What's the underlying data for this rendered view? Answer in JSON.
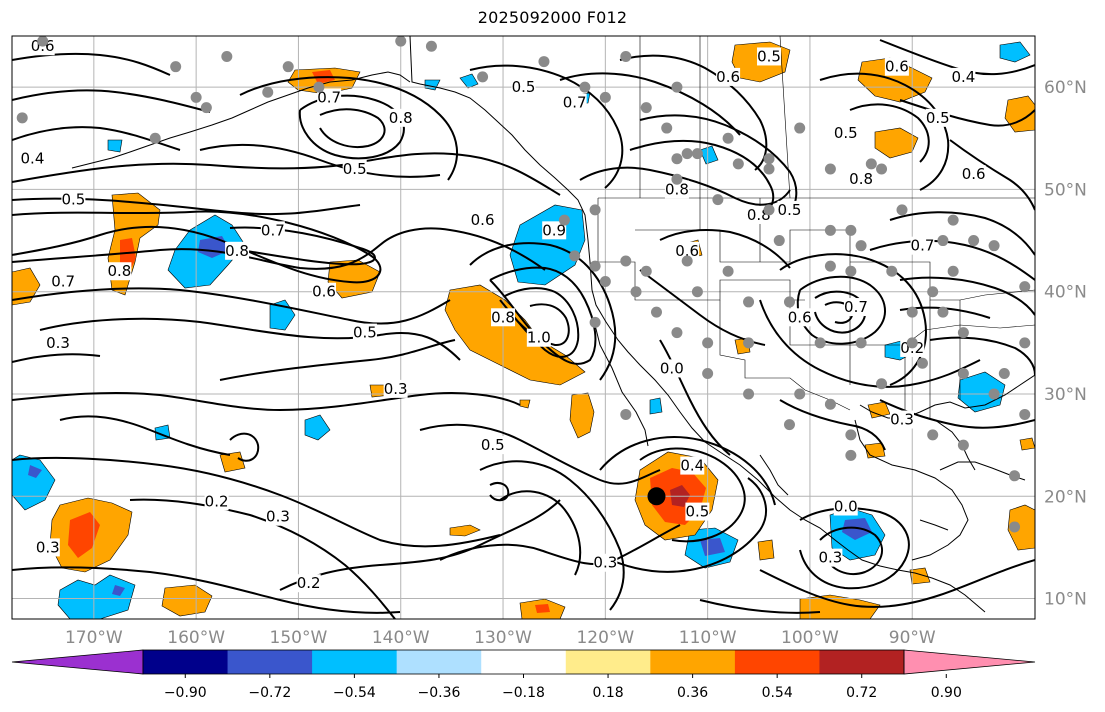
{
  "title": "2025092000 F012",
  "map": {
    "projection": "PlateCarree",
    "lon_range": [
      -178,
      -78
    ],
    "lat_range": [
      8,
      65
    ],
    "lon_ticks": [
      {
        "value": -170,
        "label": "170°W"
      },
      {
        "value": -160,
        "label": "160°W"
      },
      {
        "value": -150,
        "label": "150°W"
      },
      {
        "value": -140,
        "label": "140°W"
      },
      {
        "value": -130,
        "label": "130°W"
      },
      {
        "value": -120,
        "label": "120°W"
      },
      {
        "value": -110,
        "label": "110°W"
      },
      {
        "value": -100,
        "label": "100°W"
      },
      {
        "value": -90,
        "label": "90°W"
      }
    ],
    "lat_ticks": [
      {
        "value": 60,
        "label": "60°N"
      },
      {
        "value": 50,
        "label": "50°N"
      },
      {
        "value": 40,
        "label": "40°N"
      },
      {
        "value": 30,
        "label": "30°N"
      },
      {
        "value": 20,
        "label": "20°N"
      },
      {
        "value": 10,
        "label": "10°N"
      }
    ],
    "grid_color": "#b4b4b4",
    "tick_label_color": "#8a8a8a"
  },
  "colorbar": {
    "labels": [
      "−0.90",
      "−0.72",
      "−0.54",
      "−0.36",
      "−0.18",
      "0.18",
      "0.36",
      "0.54",
      "0.72",
      "0.90"
    ],
    "colors": [
      "#9b30d0",
      "#00008b",
      "#3a56cc",
      "#00bfff",
      "#aee0ff",
      "#ffffff",
      "#ffec8b",
      "#ffa500",
      "#ff4500",
      "#b22222",
      "#ff8fb0"
    ]
  },
  "contour_labels": [
    {
      "text": "0.6",
      "lon": -175,
      "lat": 64
    },
    {
      "text": "0.4",
      "lon": -176,
      "lat": 53
    },
    {
      "text": "0.5",
      "lon": -172,
      "lat": 49
    },
    {
      "text": "0.7",
      "lon": -173,
      "lat": 41
    },
    {
      "text": "0.8",
      "lon": -167.5,
      "lat": 42
    },
    {
      "text": "0.3",
      "lon": -173.5,
      "lat": 35
    },
    {
      "text": "0.8",
      "lon": -156,
      "lat": 44
    },
    {
      "text": "0.7",
      "lon": -152.5,
      "lat": 46
    },
    {
      "text": "0.6",
      "lon": -147.5,
      "lat": 40
    },
    {
      "text": "0.5",
      "lon": -143.5,
      "lat": 36
    },
    {
      "text": "0.3",
      "lon": -140.5,
      "lat": 30.5
    },
    {
      "text": "0.7",
      "lon": -147,
      "lat": 59
    },
    {
      "text": "0.8",
      "lon": -140,
      "lat": 57
    },
    {
      "text": "0.5",
      "lon": -144.5,
      "lat": 52
    },
    {
      "text": "0.6",
      "lon": -132,
      "lat": 47
    },
    {
      "text": "0.5",
      "lon": -128,
      "lat": 60
    },
    {
      "text": "0.7",
      "lon": -123,
      "lat": 58.5
    },
    {
      "text": "0.6",
      "lon": -108,
      "lat": 61
    },
    {
      "text": "0.5",
      "lon": -104,
      "lat": 63
    },
    {
      "text": "0.8",
      "lon": -113,
      "lat": 50
    },
    {
      "text": "0.8",
      "lon": -105,
      "lat": 47.5
    },
    {
      "text": "0.6",
      "lon": -112,
      "lat": 44
    },
    {
      "text": "0.5",
      "lon": -102,
      "lat": 48
    },
    {
      "text": "0.5",
      "lon": -96.5,
      "lat": 55.5
    },
    {
      "text": "0.8",
      "lon": -95,
      "lat": 51
    },
    {
      "text": "0.6",
      "lon": -91.5,
      "lat": 62
    },
    {
      "text": "0.4",
      "lon": -85,
      "lat": 61
    },
    {
      "text": "0.5",
      "lon": -87.5,
      "lat": 57
    },
    {
      "text": "0.6",
      "lon": -84,
      "lat": 51.5
    },
    {
      "text": "0.7",
      "lon": -89,
      "lat": 44.5
    },
    {
      "text": "0.9",
      "lon": -125,
      "lat": 46
    },
    {
      "text": "0.8",
      "lon": -130,
      "lat": 37.5
    },
    {
      "text": "1.0",
      "lon": -126.5,
      "lat": 35.5
    },
    {
      "text": "0.0",
      "lon": -113.5,
      "lat": 32.5
    },
    {
      "text": "0.6",
      "lon": -101,
      "lat": 37.5
    },
    {
      "text": "0.7",
      "lon": -95.5,
      "lat": 38.5
    },
    {
      "text": "0.2",
      "lon": -90,
      "lat": 34.5
    },
    {
      "text": "0.3",
      "lon": -91,
      "lat": 27.5
    },
    {
      "text": "0.5",
      "lon": -131,
      "lat": 25
    },
    {
      "text": "0.4",
      "lon": -111.5,
      "lat": 23
    },
    {
      "text": "0.5",
      "lon": -111,
      "lat": 18.5
    },
    {
      "text": "0.3",
      "lon": -120,
      "lat": 13.5
    },
    {
      "text": "0.0",
      "lon": -96.5,
      "lat": 19
    },
    {
      "text": "0.3",
      "lon": -98,
      "lat": 14
    },
    {
      "text": "0.2",
      "lon": -158,
      "lat": 19.5
    },
    {
      "text": "0.3",
      "lon": -152,
      "lat": 18
    },
    {
      "text": "0.2",
      "lon": -149,
      "lat": 11.5
    },
    {
      "text": "0.3",
      "lon": -174.5,
      "lat": 15
    }
  ],
  "points": [
    [
      -177,
      57
    ],
    [
      -175,
      64.5
    ],
    [
      -162,
      62
    ],
    [
      -160,
      59
    ],
    [
      -164,
      55
    ],
    [
      -159,
      58
    ],
    [
      -157,
      63
    ],
    [
      -151,
      62
    ],
    [
      -153,
      59.5
    ],
    [
      -148,
      60
    ],
    [
      -140,
      64.5
    ],
    [
      -137,
      64
    ],
    [
      -132,
      61
    ],
    [
      -126,
      62.5
    ],
    [
      -122,
      60
    ],
    [
      -120,
      59
    ],
    [
      -118,
      63
    ],
    [
      -113,
      60
    ],
    [
      -116,
      58
    ],
    [
      -114,
      56
    ],
    [
      -112,
      53.5
    ],
    [
      -111,
      53.5
    ],
    [
      -113,
      51
    ],
    [
      -113,
      53
    ],
    [
      -108,
      55
    ],
    [
      -104,
      53
    ],
    [
      -101,
      56
    ],
    [
      -107,
      52.5
    ],
    [
      -104,
      52
    ],
    [
      -109,
      49
    ],
    [
      -104,
      48
    ],
    [
      -98,
      52
    ],
    [
      -93,
      52
    ],
    [
      -96,
      46
    ],
    [
      -94,
      52.5
    ],
    [
      -91,
      48
    ],
    [
      -87,
      45
    ],
    [
      -84,
      45
    ],
    [
      -86,
      47
    ],
    [
      -124,
      47
    ],
    [
      -121,
      48
    ],
    [
      -123,
      43.5
    ],
    [
      -121,
      42.5
    ],
    [
      -118,
      43
    ],
    [
      -116,
      42
    ],
    [
      -112,
      43
    ],
    [
      -108,
      42
    ],
    [
      -103,
      45
    ],
    [
      -98,
      46
    ],
    [
      -98,
      42.5
    ],
    [
      -95,
      44.5
    ],
    [
      -120,
      41
    ],
    [
      -117,
      40
    ],
    [
      -115,
      38
    ],
    [
      -111,
      40
    ],
    [
      -106,
      39
    ],
    [
      -102,
      39
    ],
    [
      -96,
      42
    ],
    [
      -92,
      42
    ],
    [
      -88,
      40
    ],
    [
      -86,
      42
    ],
    [
      -90,
      38
    ],
    [
      -87,
      38
    ],
    [
      -82,
      44.5
    ],
    [
      -79,
      40.5
    ],
    [
      -121,
      37
    ],
    [
      -113,
      36
    ],
    [
      -110,
      35
    ],
    [
      -106,
      35
    ],
    [
      -99,
      35
    ],
    [
      -95,
      35
    ],
    [
      -90,
      35
    ],
    [
      -85,
      36
    ],
    [
      -79,
      35
    ],
    [
      -81,
      32
    ],
    [
      -85,
      32
    ],
    [
      -89,
      33
    ],
    [
      -93,
      31
    ],
    [
      -101,
      30
    ],
    [
      -98,
      29
    ],
    [
      -102,
      27
    ],
    [
      -96,
      26
    ],
    [
      -88,
      26
    ],
    [
      -85,
      25
    ],
    [
      -82,
      30
    ],
    [
      -96,
      24
    ],
    [
      -118,
      28
    ],
    [
      -110,
      32
    ],
    [
      -106,
      30
    ],
    [
      -80,
      22
    ],
    [
      -79,
      28
    ],
    [
      -80,
      17
    ]
  ],
  "black_point": [
    -115,
    20
  ]
}
